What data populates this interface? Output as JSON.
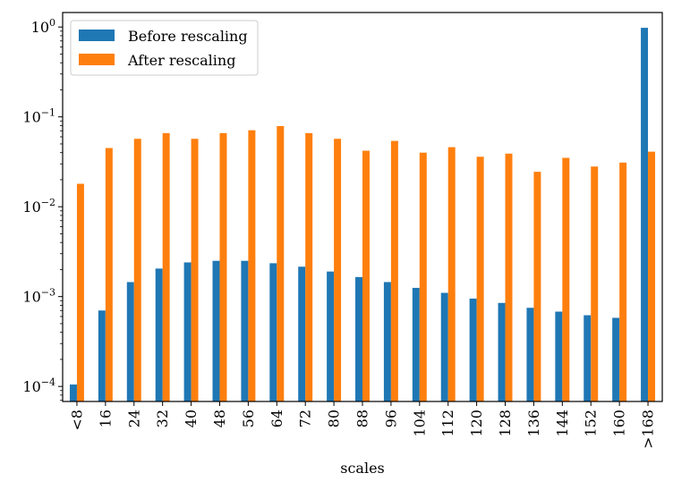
{
  "chart_data": {
    "type": "bar",
    "title": "",
    "xlabel": "scales",
    "ylabel": "",
    "yscale": "log",
    "ylim": [
      6.8e-05,
      1.45
    ],
    "grid": false,
    "legend_position": "top-left",
    "categories": [
      "<8",
      "16",
      "24",
      "32",
      "40",
      "48",
      "56",
      "64",
      "72",
      "80",
      "88",
      "96",
      "104",
      "112",
      "120",
      "128",
      "136",
      "144",
      "152",
      "160",
      ">168"
    ],
    "series": [
      {
        "name": "Before rescaling",
        "color": "#1f77b4",
        "values": [
          0.000105,
          0.0007,
          0.00145,
          0.00205,
          0.0024,
          0.0025,
          0.0025,
          0.00235,
          0.00215,
          0.0019,
          0.00165,
          0.00145,
          0.00125,
          0.0011,
          0.00095,
          0.00085,
          0.00075,
          0.00068,
          0.00062,
          0.00058,
          0.98
        ]
      },
      {
        "name": "After rescaling",
        "color": "#ff7f0e",
        "values": [
          0.018,
          0.045,
          0.057,
          0.066,
          0.057,
          0.066,
          0.071,
          0.079,
          0.066,
          0.057,
          0.042,
          0.054,
          0.04,
          0.046,
          0.036,
          0.039,
          0.0245,
          0.035,
          0.028,
          0.031,
          0.041
        ]
      }
    ],
    "yticks": [
      {
        "value": 0.0001,
        "base": "10",
        "exp": "−4"
      },
      {
        "value": 0.001,
        "base": "10",
        "exp": "−3"
      },
      {
        "value": 0.01,
        "base": "10",
        "exp": "−2"
      },
      {
        "value": 0.1,
        "base": "10",
        "exp": "−1"
      },
      {
        "value": 1,
        "base": "10",
        "exp": "0"
      }
    ]
  }
}
